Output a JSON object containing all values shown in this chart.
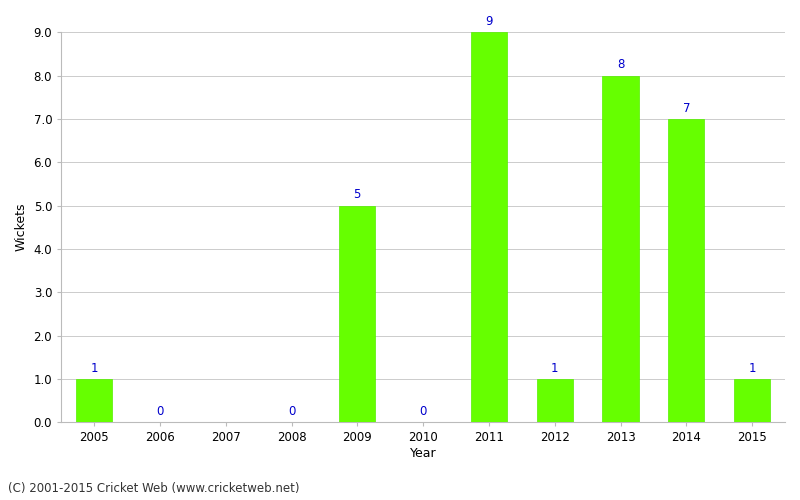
{
  "all_years": [
    2005,
    2006,
    2007,
    2008,
    2009,
    2010,
    2011,
    2012,
    2013,
    2014,
    2015
  ],
  "data_years": [
    2005,
    2006,
    2008,
    2009,
    2010,
    2011,
    2012,
    2013,
    2014,
    2015
  ],
  "wickets": [
    1,
    0,
    0,
    5,
    0,
    9,
    1,
    8,
    7,
    1
  ],
  "bar_color": "#66ff00",
  "bar_edge_color": "#55ee00",
  "label_color": "#0000cc",
  "xlabel": "Year",
  "ylabel": "Wickets",
  "ylim_max": 9.0,
  "yticks": [
    0.0,
    1.0,
    2.0,
    3.0,
    4.0,
    5.0,
    6.0,
    7.0,
    8.0,
    9.0
  ],
  "footnote": "(C) 2001-2015 Cricket Web (www.cricketweb.net)",
  "background_color": "#ffffff",
  "grid_color": "#cccccc",
  "label_fontsize": 8.5,
  "tick_fontsize": 8.5,
  "axis_label_fontsize": 9,
  "footnote_fontsize": 8.5,
  "bar_width": 0.55
}
